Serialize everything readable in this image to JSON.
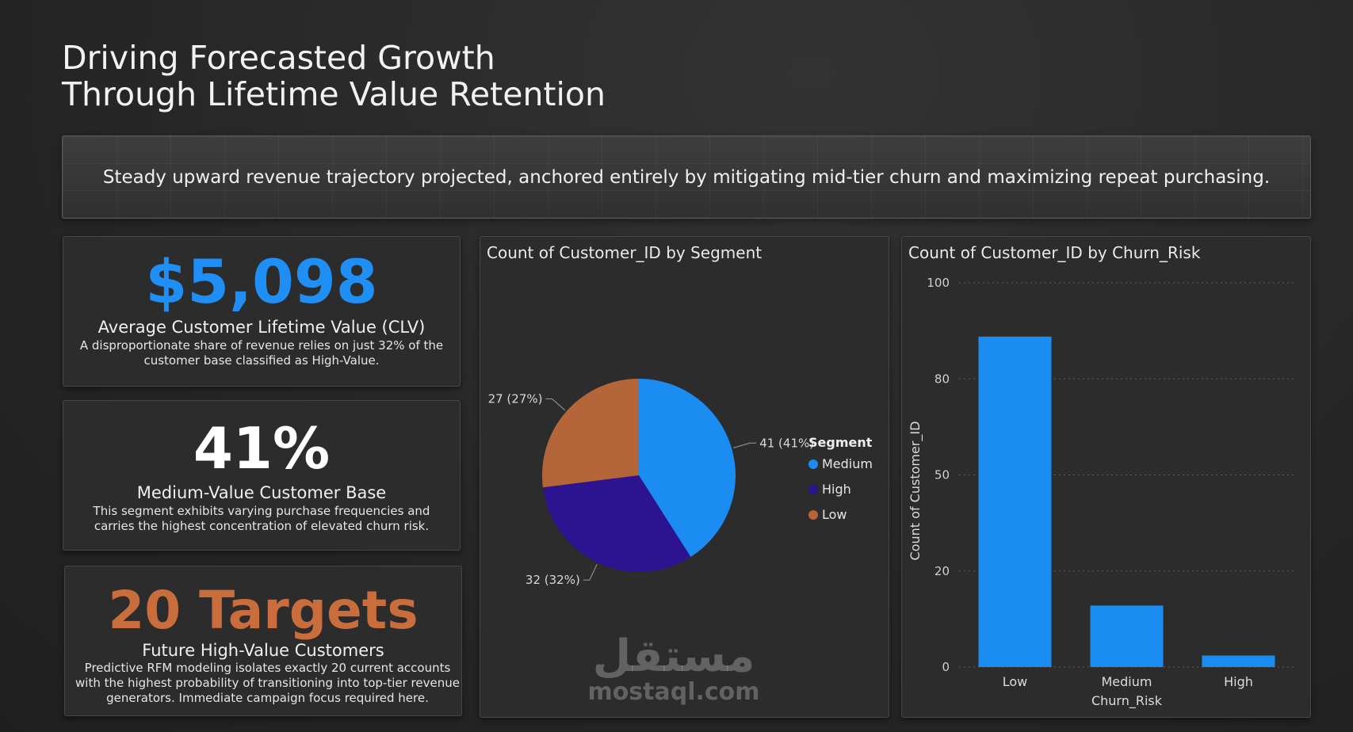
{
  "page_title_line1": "Driving Forecasted Growth",
  "page_title_line2": "Through Lifetime Value Retention",
  "banner_text": "Steady upward revenue trajectory projected, anchored entirely by mitigating mid-tier churn and maximizing repeat purchasing.",
  "kpis": [
    {
      "value": "$5,098",
      "label": "Average Customer Lifetime Value (CLV)",
      "desc": "A disproportionate share of revenue relies on just 32% of the customer base classified as High-Value.",
      "color": "#1f8ef5"
    },
    {
      "value": "41%",
      "label": "Medium-Value Customer Base",
      "desc": "This segment exhibits varying purchase frequencies and carries the highest concentration of elevated churn risk.",
      "color": "#ffffff"
    },
    {
      "value": "20 Targets",
      "label": "Future High-Value Customers",
      "desc": "Predictive RFM modeling isolates exactly 20 current accounts with the highest probability of transitioning into top-tier revenue generators. Immediate campaign focus required here.",
      "color": "#c96d3c"
    }
  ],
  "watermark": {
    "arabic": "مستقل",
    "latin": "mostaql.com"
  },
  "chart_data": [
    {
      "type": "pie",
      "title": "Count of Customer_ID by Segment",
      "legend_title": "Segment",
      "legend_placement": "right",
      "slices": [
        {
          "name": "Medium",
          "value": 41,
          "label": "41 (41%)",
          "color": "#1a8cf2"
        },
        {
          "name": "High",
          "value": 32,
          "label": "32 (32%)",
          "color": "#2c1491"
        },
        {
          "name": "Low",
          "value": 27,
          "label": "27 (27%)",
          "color": "#b5653a"
        }
      ]
    },
    {
      "type": "bar",
      "title": "Count of Customer_ID by Churn_Risk",
      "xlabel": "Churn_Risk",
      "ylabel": "Count of Customer_ID",
      "categories": [
        "Low",
        "Medium",
        "High"
      ],
      "values": [
        86,
        16,
        3
      ],
      "ytick_labels": [
        "0",
        "20",
        "50",
        "80",
        "100"
      ],
      "ylim": [
        0,
        100
      ],
      "grid": true,
      "bar_color": "#1a8cf2"
    }
  ]
}
